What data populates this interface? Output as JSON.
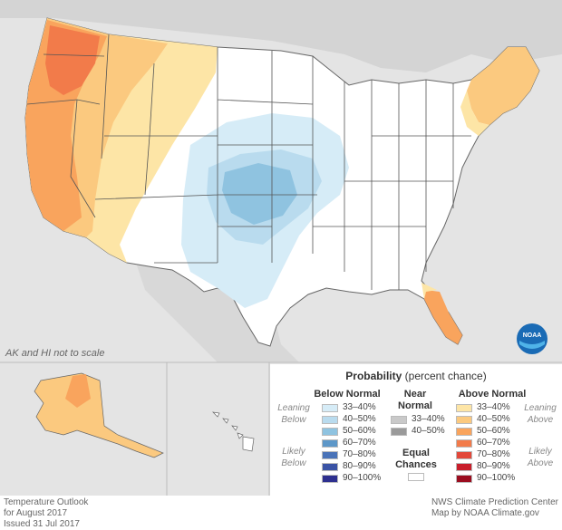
{
  "map": {
    "scale_note": "AK and HI not to scale"
  },
  "legend": {
    "title": "Probability",
    "title_suffix": "(percent chance)",
    "below": {
      "header": "Below Normal",
      "leaning_label": "Leaning Below",
      "likely_label": "Likely Below",
      "items": [
        {
          "range": "33–40%",
          "color": "#d6ecf7"
        },
        {
          "range": "40–50%",
          "color": "#b9dbee"
        },
        {
          "range": "50–60%",
          "color": "#8fc3e0"
        },
        {
          "range": "60–70%",
          "color": "#5d97c8"
        },
        {
          "range": "70–80%",
          "color": "#4a73b8"
        },
        {
          "range": "80–90%",
          "color": "#3a53a5"
        },
        {
          "range": "90–100%",
          "color": "#2d2f8f"
        }
      ]
    },
    "near": {
      "header": "Near Normal",
      "items": [
        {
          "range": "33–40%",
          "color": "#c9c9c9"
        },
        {
          "range": "40–50%",
          "color": "#9a9a9a"
        }
      ]
    },
    "equal": {
      "label": "Equal Chances",
      "color": "#ffffff"
    },
    "above": {
      "header": "Above Normal",
      "leaning_label": "Leaning Above",
      "likely_label": "Likely Above",
      "items": [
        {
          "range": "33–40%",
          "color": "#fde5a6"
        },
        {
          "range": "40–50%",
          "color": "#fbc97f"
        },
        {
          "range": "50–60%",
          "color": "#f9a45d"
        },
        {
          "range": "60–70%",
          "color": "#f27b4a"
        },
        {
          "range": "70–80%",
          "color": "#e3483a"
        },
        {
          "range": "80–90%",
          "color": "#c81e2b"
        },
        {
          "range": "90–100%",
          "color": "#9b0d1f"
        }
      ]
    }
  },
  "footer": {
    "left_line1": "Temperature Outlook",
    "left_line2": "for August 2017",
    "left_line3": "Issued 31 Jul 2017",
    "right_line1": "NWS Climate Prediction Center",
    "right_line2": "Map by NOAA Climate.gov"
  },
  "logo": {
    "text": "NOAA"
  },
  "colors": {
    "background": "#dcdcdc",
    "land": "#ffffff",
    "ocean": "#eaeaea",
    "state_lines": "#555555"
  }
}
